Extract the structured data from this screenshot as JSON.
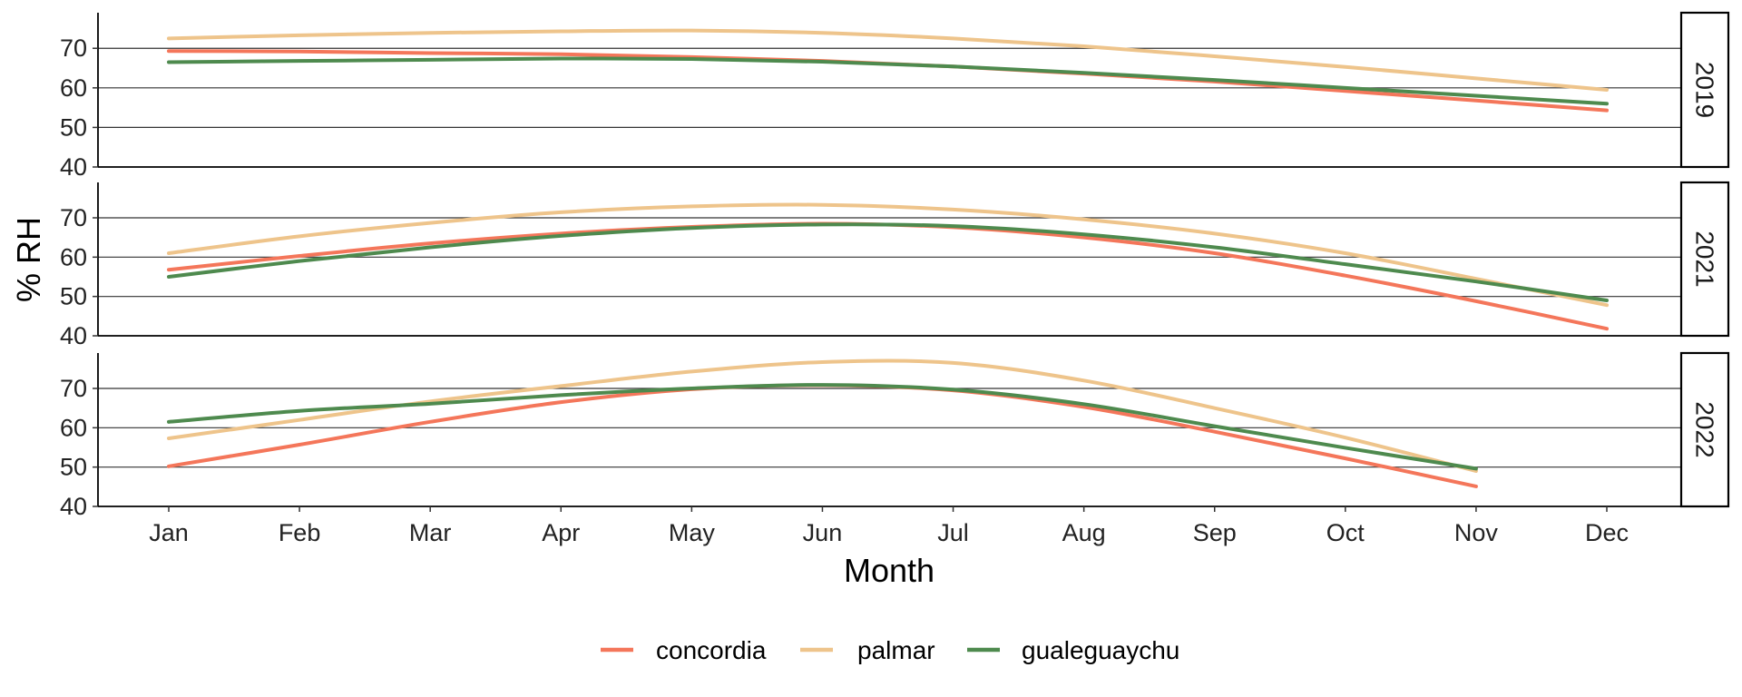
{
  "chart_data": {
    "type": "line",
    "xlabel": "Month",
    "ylabel": "% RH",
    "x": [
      "Jan",
      "Feb",
      "Mar",
      "Apr",
      "May",
      "Jun",
      "Jul",
      "Aug",
      "Sep",
      "Oct",
      "Nov",
      "Dec"
    ],
    "ylim": [
      40,
      79
    ],
    "yticks": [
      40,
      50,
      60,
      70
    ],
    "grid": "horizontal major lines",
    "legend_position": "bottom",
    "series_colors": {
      "concordia": "#f4765a",
      "palmar": "#eec48b",
      "gualeguaychu": "#4e8a4e"
    },
    "legend": [
      "concordia",
      "palmar",
      "gualeguaychu"
    ],
    "panels": [
      {
        "label": "2019",
        "series": [
          {
            "name": "concordia",
            "values": [
              69.3,
              69.2,
              68.8,
              68.5,
              67.8,
              66.8,
              65.4,
              63.6,
              61.6,
              59.2,
              56.8,
              54.3
            ]
          },
          {
            "name": "palmar",
            "values": [
              72.5,
              73.3,
              73.9,
              74.3,
              74.5,
              73.9,
              72.5,
              70.5,
              68.0,
              65.3,
              62.4,
              59.5
            ]
          },
          {
            "name": "gualeguaychu",
            "values": [
              66.5,
              66.8,
              67.1,
              67.4,
              67.3,
              66.6,
              65.4,
              63.8,
              62.0,
              60.0,
              58.0,
              56.0
            ]
          }
        ]
      },
      {
        "label": "2021",
        "series": [
          {
            "name": "concordia",
            "values": [
              56.8,
              60.3,
              63.5,
              66.0,
              67.7,
              68.5,
              67.6,
              65.0,
              61.0,
              55.3,
              48.8,
              41.8
            ]
          },
          {
            "name": "palmar",
            "values": [
              61.0,
              65.3,
              68.7,
              71.4,
              72.9,
              73.3,
              72.1,
              69.6,
              66.0,
              61.0,
              54.5,
              47.8
            ]
          },
          {
            "name": "gualeguaychu",
            "values": [
              55.0,
              59.0,
              62.5,
              65.4,
              67.4,
              68.3,
              67.9,
              65.8,
              62.5,
              58.2,
              53.8,
              49.0
            ]
          }
        ]
      },
      {
        "label": "2022",
        "series": [
          {
            "name": "concordia",
            "values": [
              50.2,
              55.7,
              61.5,
              66.5,
              69.8,
              70.8,
              69.5,
              65.3,
              59.0,
              52.2,
              45.1,
              null
            ]
          },
          {
            "name": "palmar",
            "values": [
              57.3,
              62.0,
              66.7,
              70.6,
              74.3,
              76.7,
              76.5,
              72.0,
              65.0,
              57.5,
              49.0,
              null
            ]
          },
          {
            "name": "gualeguaychu",
            "values": [
              61.5,
              64.3,
              66.1,
              68.3,
              70.0,
              70.9,
              69.7,
              66.0,
              60.4,
              54.9,
              49.6,
              null
            ]
          }
        ]
      }
    ]
  }
}
